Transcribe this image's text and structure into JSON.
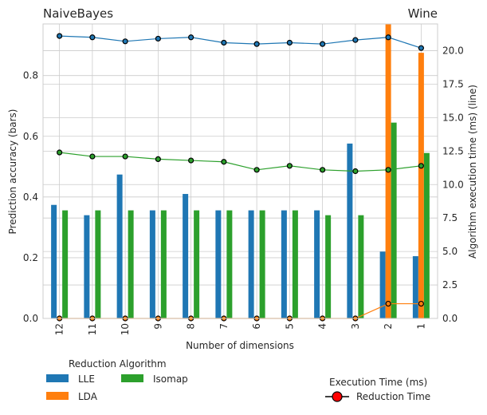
{
  "chart_data": {
    "type": "bar",
    "title_left": "NaiveBayes",
    "title_right": "Wine",
    "xlabel": "Number of dimensions",
    "ylabel_left": "Prediction accuracy (bars)",
    "ylabel_right": "Algorithm execution time (ms) (line)",
    "categories": [
      "12",
      "11",
      "10",
      "9",
      "8",
      "7",
      "6",
      "5",
      "4",
      "3",
      "2",
      "1"
    ],
    "ylim_left": [
      0,
      0.97
    ],
    "ylim_right": [
      0,
      22
    ],
    "yticks_left": [
      "0.0",
      "0.2",
      "0.4",
      "0.6",
      "0.8"
    ],
    "yticks_right": [
      "0.0",
      "2.5",
      "5.0",
      "7.5",
      "10.0",
      "12.5",
      "15.0",
      "17.5",
      "20.0"
    ],
    "grid": true,
    "series": [
      {
        "name": "LLE",
        "color": "#1f77b4",
        "values": [
          0.374,
          0.34,
          0.474,
          0.356,
          0.41,
          0.356,
          0.356,
          0.356,
          0.356,
          0.576,
          0.22,
          0.205
        ]
      },
      {
        "name": "LDA",
        "color": "#ff7f0e",
        "values": [
          0,
          0,
          0,
          0,
          0,
          0,
          0,
          0,
          0,
          0,
          1.0,
          0.875
        ]
      },
      {
        "name": "Isomap",
        "color": "#2ca02c",
        "values": [
          0.356,
          0.356,
          0.356,
          0.356,
          0.356,
          0.356,
          0.356,
          0.356,
          0.34,
          0.34,
          0.645,
          0.545
        ]
      }
    ],
    "lines": [
      {
        "series": "LLE",
        "color": "#1f77b4",
        "values": [
          21.1,
          21.0,
          20.7,
          20.9,
          21.0,
          20.6,
          20.5,
          20.6,
          20.5,
          20.8,
          21.0,
          20.2
        ]
      },
      {
        "series": "LDA",
        "color": "#ff7f0e",
        "values": [
          0,
          0,
          0,
          0,
          0,
          0,
          0,
          0,
          0,
          0,
          1.1,
          1.1
        ]
      },
      {
        "series": "Isomap",
        "color": "#2ca02c",
        "values": [
          12.4,
          12.1,
          12.1,
          11.9,
          11.8,
          11.7,
          11.1,
          11.4,
          11.1,
          11.0,
          11.1,
          11.4
        ]
      }
    ],
    "legend_left": {
      "title": "Reduction Algorithm",
      "items": [
        "LLE",
        "LDA",
        "Isomap"
      ]
    },
    "legend_right": {
      "title": "Execution Time (ms)",
      "items": [
        "Reduction Time"
      ],
      "marker_color": "#ff0000"
    }
  }
}
